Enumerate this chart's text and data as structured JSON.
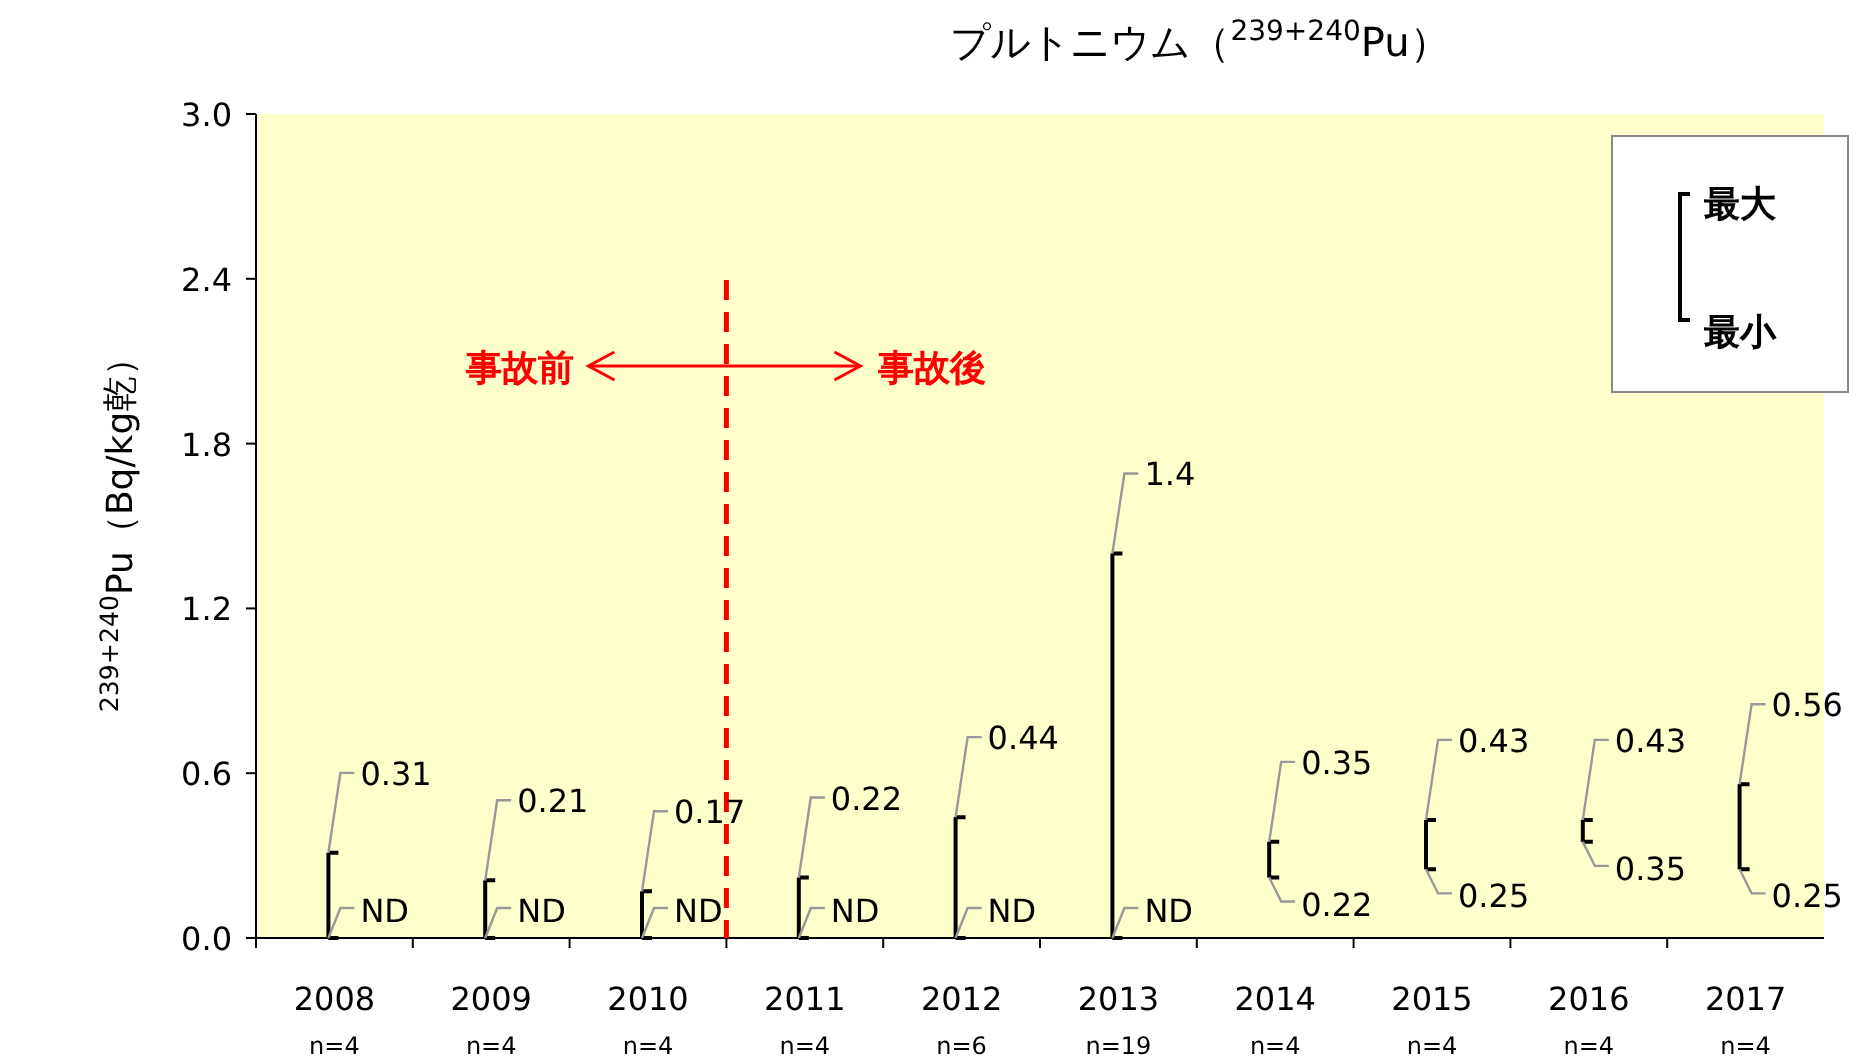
{
  "chart_data": {
    "type": "bar",
    "title": "プルトニウム（$^{239+240}$Pu）",
    "ylabel": "$^{239+240}$Pu（Bq/kg乾）",
    "categories": [
      "2008",
      "2009",
      "2010",
      "2011",
      "2012",
      "2013",
      "2014",
      "2015",
      "2016",
      "2017"
    ],
    "values": [
      0.31,
      0.21,
      0.17,
      0.22,
      0.44,
      1.4,
      0.13,
      0.18,
      0.08,
      0.31
    ],
    "base": [
      0,
      0,
      0,
      0,
      0,
      0,
      0.22,
      0.25,
      0.35,
      0.25
    ],
    "color": "#000000",
    "ylim": [
      0,
      3
    ],
    "yticks": [
      {
        "value": 0,
        "label": "0.0"
      },
      0.6,
      1.2,
      1.8,
      2.4,
      {
        "value": 3,
        "label": "3.0"
      }
    ],
    "annotations": [
      "事故前",
      "事故後",
      "最大",
      "最小",
      {
        "text": "0.31",
        "x": "2008",
        "y": 0.31
      },
      {
        "text": "ND",
        "x": "2008",
        "y": 0
      },
      {
        "text": "0.21",
        "x": "2009",
        "y": 0.21
      },
      {
        "text": "ND",
        "x": "2009",
        "y": 0
      },
      {
        "text": "0.17",
        "x": "2010",
        "y": 0.17
      },
      {
        "text": "ND",
        "x": "2010",
        "y": 0
      },
      {
        "text": "0.22",
        "x": "2011",
        "y": 0.22
      },
      {
        "text": "ND",
        "x": "2011",
        "y": 0
      },
      {
        "text": "0.44",
        "x": "2012",
        "y": 0.44
      },
      {
        "text": "ND",
        "x": "2012",
        "y": 0
      },
      {
        "text": "1.4",
        "x": "2013",
        "y": 1.4
      },
      {
        "text": "ND",
        "x": "2013",
        "y": 0
      },
      {
        "text": "0.35",
        "x": "2014",
        "y": 0.35
      },
      {
        "text": "0.22",
        "x": "2014",
        "y": 0.22
      },
      {
        "text": "0.43",
        "x": "2015",
        "y": 0.43
      },
      {
        "text": "0.25",
        "x": "2015",
        "y": 0.25
      },
      {
        "text": "0.43",
        "x": "2016",
        "y": 0.43
      },
      {
        "text": "0.35",
        "x": "2016",
        "y": 0.35
      },
      {
        "text": "0.56",
        "x": "2017",
        "y": 0.56
      },
      {
        "text": "0.25",
        "x": "2017",
        "y": 0.25
      },
      "n=4",
      "n=4",
      "n=4",
      "n=4",
      "n=6",
      "n=19",
      "n=4",
      "n=4",
      "n=4",
      "n=4"
    ]
  }
}
